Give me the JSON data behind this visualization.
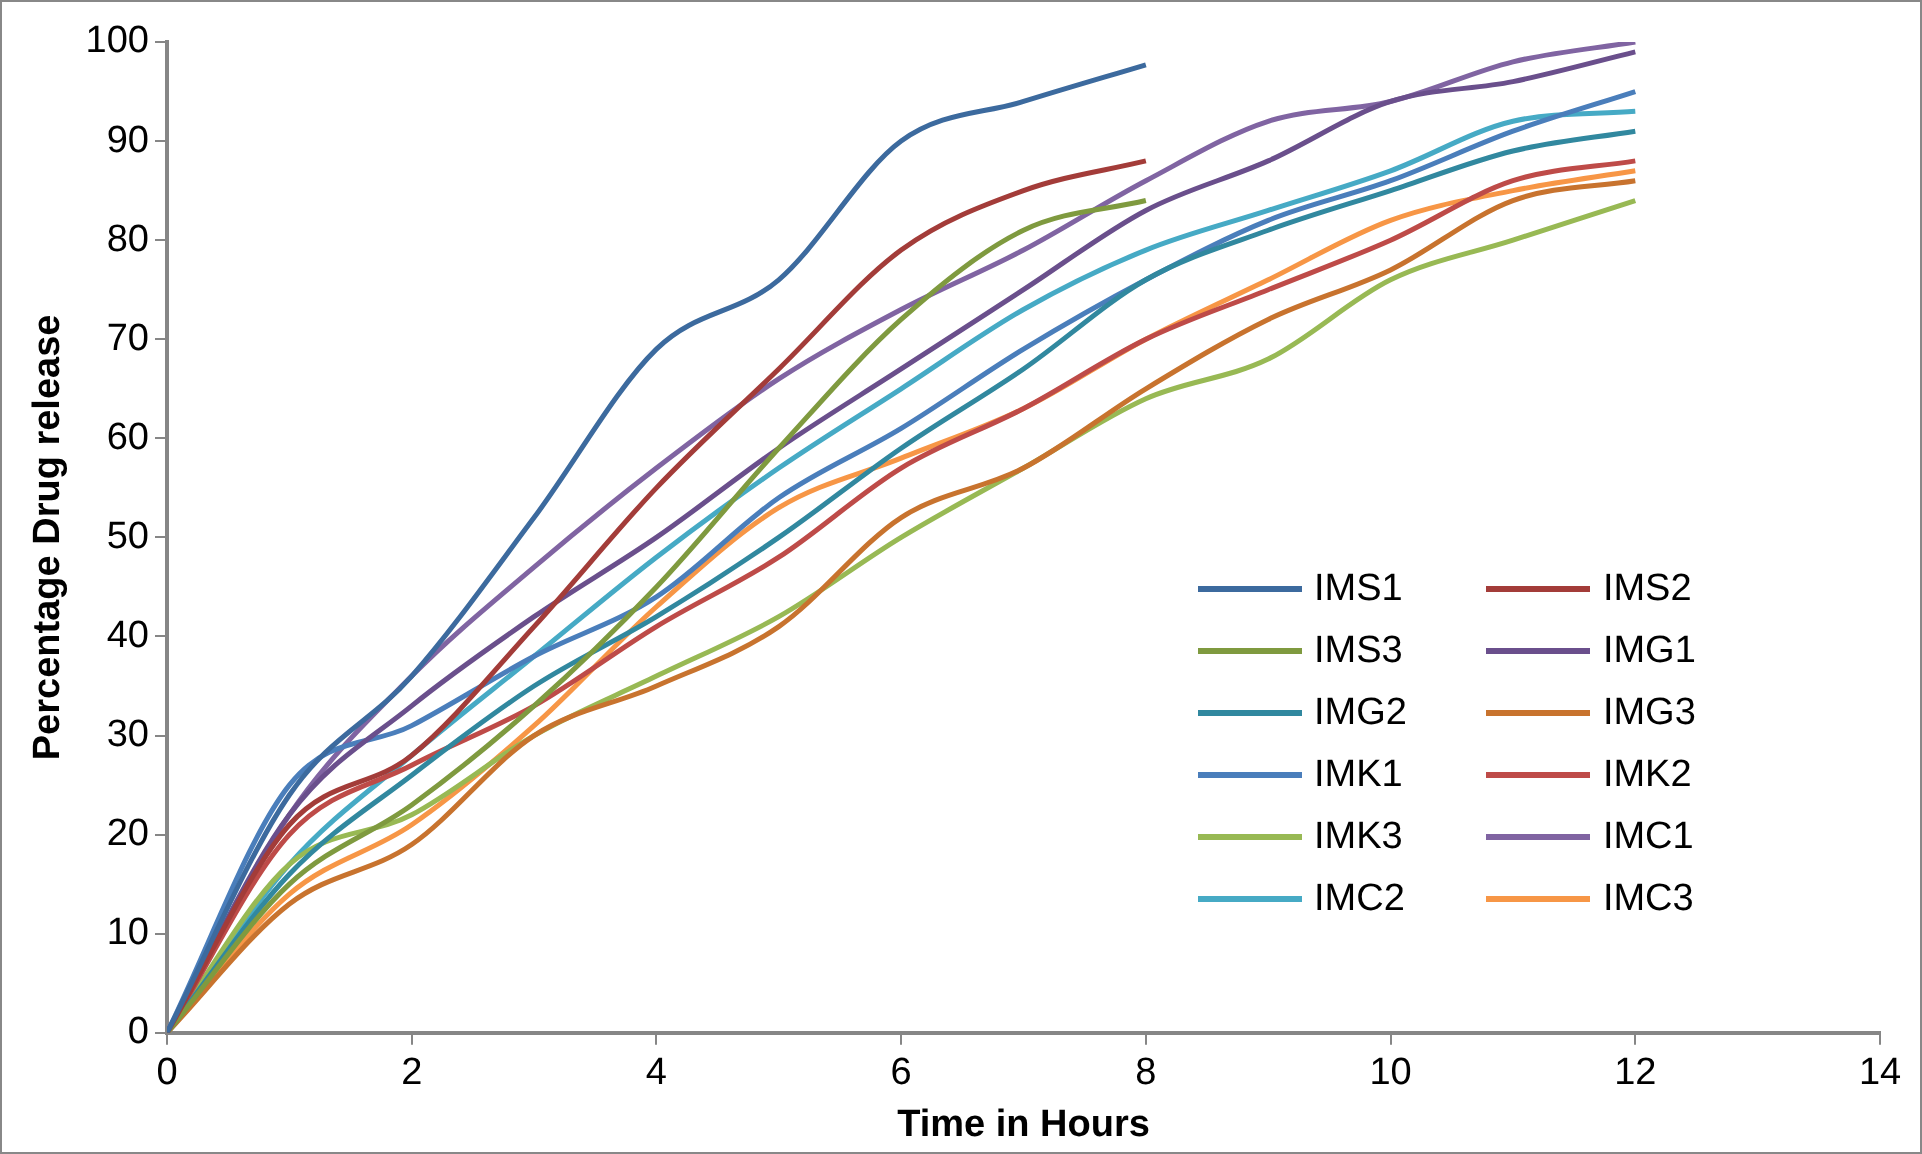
{
  "chart_data": {
    "type": "line",
    "xlabel": "Time in Hours",
    "ylabel": "Percentage Drug release",
    "xlim": [
      0,
      14
    ],
    "xticks": [
      0,
      2,
      4,
      6,
      8,
      10,
      12,
      14
    ],
    "ylim": [
      0,
      100
    ],
    "yticks": [
      0,
      10,
      20,
      30,
      40,
      50,
      60,
      70,
      80,
      90,
      100
    ],
    "grid": false,
    "legend": "bottom right",
    "marker": "none",
    "line_style": "solid",
    "series": [
      {
        "name": "IMS1",
        "color": "#3c6a9e",
        "x": [
          0,
          1,
          2,
          3,
          4,
          5,
          6,
          7,
          8
        ],
        "values": [
          0,
          24,
          36,
          52,
          69,
          76,
          90,
          94,
          97.7
        ]
      },
      {
        "name": "IMS2",
        "color": "#a33c39",
        "x": [
          0,
          1,
          2,
          3,
          4,
          5,
          6,
          7,
          8
        ],
        "values": [
          0,
          21,
          28,
          41,
          55,
          67,
          79,
          85,
          88
        ]
      },
      {
        "name": "IMS3",
        "color": "#7f9a3f",
        "x": [
          0,
          1,
          2,
          3,
          4,
          5,
          6,
          7,
          8
        ],
        "values": [
          0,
          15,
          23,
          33,
          45,
          59,
          72,
          81,
          84
        ]
      },
      {
        "name": "IMG1",
        "color": "#6a4f8c",
        "x": [
          0,
          1,
          2,
          3,
          4,
          5,
          6,
          7,
          8,
          9,
          10,
          11,
          12
        ],
        "values": [
          0,
          22,
          33,
          42,
          50,
          59,
          67,
          75,
          83,
          88,
          94,
          96,
          99
        ]
      },
      {
        "name": "IMG2",
        "color": "#31889f",
        "x": [
          0,
          1,
          2,
          3,
          4,
          5,
          6,
          7,
          8,
          9,
          10,
          11,
          12
        ],
        "values": [
          0,
          16,
          26,
          35,
          42,
          50,
          59,
          67,
          76,
          81,
          85,
          89,
          91
        ]
      },
      {
        "name": "IMG3",
        "color": "#c8732e",
        "x": [
          0,
          1,
          2,
          3,
          4,
          5,
          6,
          7,
          8,
          9,
          10,
          11,
          12
        ],
        "values": [
          0,
          13,
          19,
          30,
          35,
          41,
          52,
          57,
          65,
          72,
          77,
          84,
          86
        ]
      },
      {
        "name": "IMK1",
        "color": "#4a7ebb",
        "x": [
          0,
          1,
          2,
          3,
          4,
          5,
          6,
          7,
          8,
          9,
          10,
          11,
          12
        ],
        "values": [
          0,
          25,
          31,
          38,
          44,
          54,
          61,
          69,
          76,
          82,
          86,
          91,
          95
        ]
      },
      {
        "name": "IMK2",
        "color": "#be4b48",
        "x": [
          0,
          1,
          2,
          3,
          4,
          5,
          6,
          7,
          8,
          9,
          10,
          11,
          12
        ],
        "values": [
          0,
          20,
          27,
          33,
          41,
          48,
          57,
          63,
          70,
          75,
          80,
          86,
          88
        ]
      },
      {
        "name": "IMK3",
        "color": "#98b954",
        "x": [
          0,
          1,
          2,
          3,
          4,
          5,
          6,
          7,
          8,
          9,
          10,
          11,
          12
        ],
        "values": [
          0,
          17,
          22,
          30,
          36,
          42,
          50,
          57,
          64,
          68,
          76,
          80,
          84
        ]
      },
      {
        "name": "IMC1",
        "color": "#8064a2",
        "x": [
          0,
          1,
          2,
          3,
          4,
          5,
          6,
          7,
          8,
          9,
          10,
          11,
          12
        ],
        "values": [
          0,
          22,
          36,
          47,
          57,
          66,
          73,
          79,
          86,
          92,
          94,
          98,
          100
        ]
      },
      {
        "name": "IMC2",
        "color": "#46aac5",
        "x": [
          0,
          1,
          2,
          3,
          4,
          5,
          6,
          7,
          8,
          9,
          10,
          11,
          12
        ],
        "values": [
          0,
          17,
          28,
          38,
          48,
          57,
          65,
          73,
          79,
          83,
          87,
          92,
          93
        ]
      },
      {
        "name": "IMC3",
        "color": "#f79646",
        "x": [
          0,
          1,
          2,
          3,
          4,
          5,
          6,
          7,
          8,
          9,
          10,
          11,
          12
        ],
        "values": [
          0,
          14,
          21,
          31,
          43,
          53,
          58,
          63,
          70,
          76,
          82,
          85,
          87
        ]
      }
    ]
  }
}
